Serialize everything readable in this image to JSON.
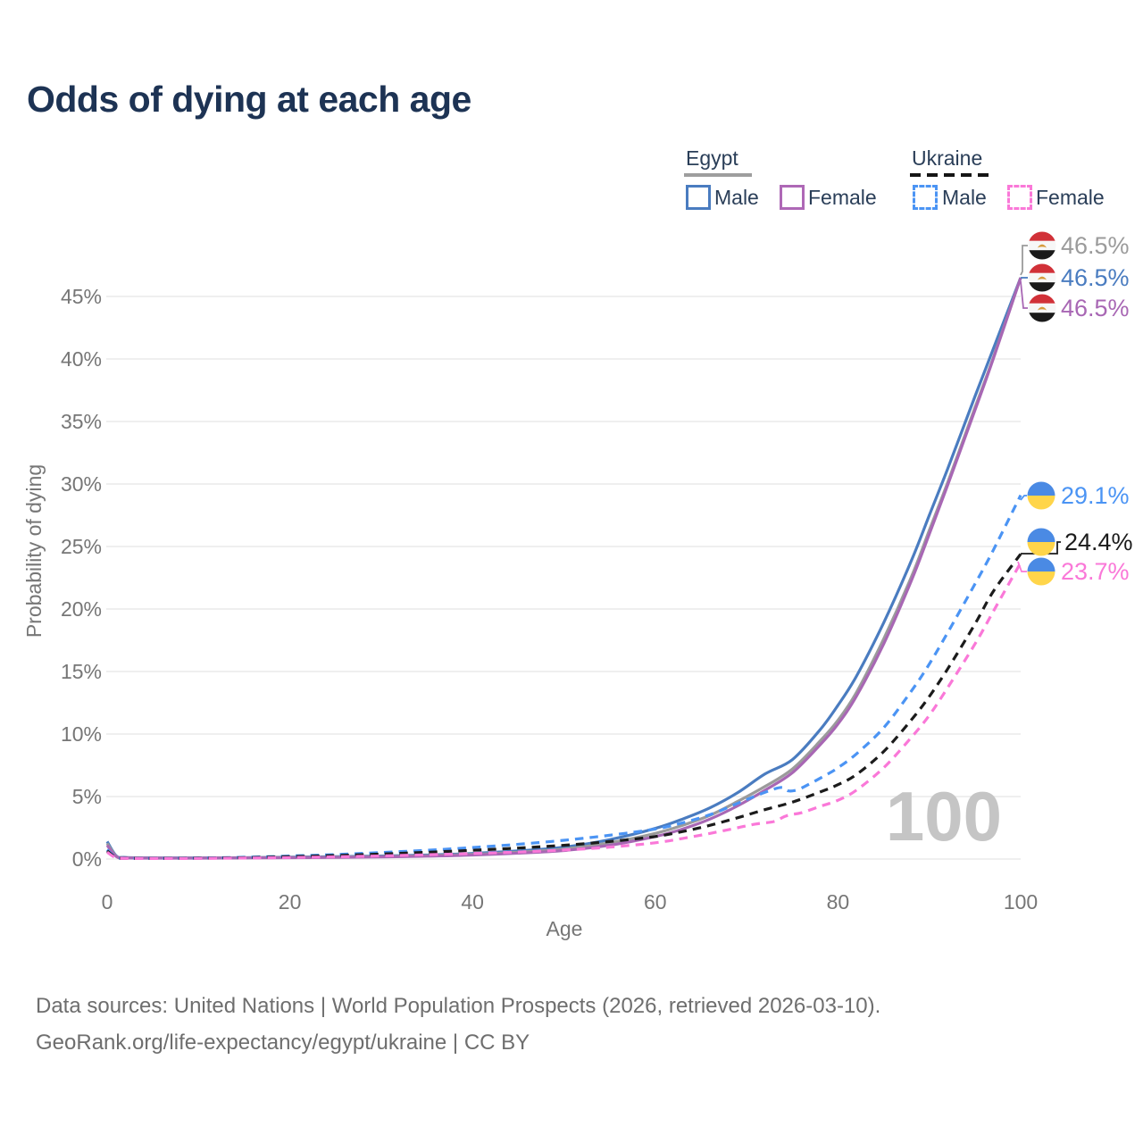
{
  "title": "Odds of dying at each age",
  "legend": {
    "egypt": {
      "label": "Egypt",
      "male": "Male",
      "female": "Female"
    },
    "ukraine": {
      "label": "Ukraine",
      "male": "Male",
      "female": "Female"
    }
  },
  "watermark": "100",
  "axis": {
    "x_label": "Age",
    "y_label": "Probability of dying"
  },
  "footer": {
    "line1": "Data sources: United Nations | World Population Prospects (2026, retrieved 2026-03-10).",
    "line2": "GeoRank.org/life-expectancy/egypt/ukraine | CC BY"
  },
  "chart_data": {
    "type": "line",
    "title": "Odds of dying at each age",
    "xlabel": "Age",
    "ylabel": "Probability of dying",
    "xlim": [
      0,
      100
    ],
    "ylim": [
      0,
      47
    ],
    "grid": true,
    "x_ticks": [
      "0",
      "20",
      "40",
      "60",
      "80",
      "100"
    ],
    "y_ticks": [
      "0%",
      "5%",
      "10%",
      "15%",
      "20%",
      "25%",
      "30%",
      "35%",
      "40%",
      "45%"
    ],
    "series": [
      {
        "name": "Egypt Male",
        "country": "Egypt",
        "sex": "Male",
        "style": "solid",
        "color": "#4a7cc0",
        "end_label": "46.5%",
        "end_value": 46.5,
        "points": [
          [
            0,
            1.4
          ],
          [
            1,
            0.25
          ],
          [
            2,
            0.13
          ],
          [
            5,
            0.09
          ],
          [
            10,
            0.09
          ],
          [
            15,
            0.11
          ],
          [
            20,
            0.15
          ],
          [
            25,
            0.19
          ],
          [
            30,
            0.24
          ],
          [
            35,
            0.32
          ],
          [
            40,
            0.45
          ],
          [
            45,
            0.65
          ],
          [
            50,
            0.95
          ],
          [
            55,
            1.55
          ],
          [
            60,
            2.45
          ],
          [
            63,
            3.2
          ],
          [
            66,
            4.1
          ],
          [
            69,
            5.3
          ],
          [
            72,
            6.8
          ],
          [
            75,
            7.95
          ],
          [
            78,
            10.3
          ],
          [
            80,
            12.3
          ],
          [
            82,
            14.6
          ],
          [
            85,
            18.9
          ],
          [
            88,
            23.8
          ],
          [
            90,
            27.5
          ],
          [
            92,
            31.2
          ],
          [
            95,
            37.0
          ],
          [
            97,
            40.8
          ],
          [
            100,
            46.5
          ]
        ]
      },
      {
        "name": "Egypt Total",
        "country": "Egypt",
        "sex": "Both",
        "style": "solid",
        "color": "#9b9b9b",
        "end_label": "46.5%",
        "end_value": 46.5,
        "points": [
          [
            0,
            1.25
          ],
          [
            1,
            0.22
          ],
          [
            2,
            0.11
          ],
          [
            5,
            0.08
          ],
          [
            10,
            0.08
          ],
          [
            15,
            0.1
          ],
          [
            20,
            0.13
          ],
          [
            25,
            0.16
          ],
          [
            30,
            0.2
          ],
          [
            35,
            0.27
          ],
          [
            40,
            0.38
          ],
          [
            45,
            0.55
          ],
          [
            50,
            0.8
          ],
          [
            55,
            1.3
          ],
          [
            60,
            2.05
          ],
          [
            63,
            2.7
          ],
          [
            66,
            3.5
          ],
          [
            69,
            4.6
          ],
          [
            72,
            5.8
          ],
          [
            75,
            7.2
          ],
          [
            78,
            9.4
          ],
          [
            80,
            11.1
          ],
          [
            82,
            13.3
          ],
          [
            85,
            17.6
          ],
          [
            88,
            22.5
          ],
          [
            90,
            26.3
          ],
          [
            92,
            30.1
          ],
          [
            95,
            36.1
          ],
          [
            97,
            40.1
          ],
          [
            100,
            46.5
          ]
        ]
      },
      {
        "name": "Egypt Female",
        "country": "Egypt",
        "sex": "Female",
        "style": "solid",
        "color": "#a867b4",
        "end_label": "46.5%",
        "end_value": 46.5,
        "points": [
          [
            0,
            1.1
          ],
          [
            1,
            0.2
          ],
          [
            2,
            0.1
          ],
          [
            5,
            0.07
          ],
          [
            10,
            0.07
          ],
          [
            15,
            0.09
          ],
          [
            20,
            0.11
          ],
          [
            25,
            0.13
          ],
          [
            30,
            0.17
          ],
          [
            35,
            0.23
          ],
          [
            40,
            0.32
          ],
          [
            45,
            0.47
          ],
          [
            50,
            0.68
          ],
          [
            55,
            1.1
          ],
          [
            60,
            1.8
          ],
          [
            63,
            2.4
          ],
          [
            66,
            3.2
          ],
          [
            69,
            4.25
          ],
          [
            72,
            5.5
          ],
          [
            75,
            6.9
          ],
          [
            78,
            9.1
          ],
          [
            80,
            10.8
          ],
          [
            82,
            13.0
          ],
          [
            85,
            17.2
          ],
          [
            88,
            22.2
          ],
          [
            90,
            26.0
          ],
          [
            92,
            29.9
          ],
          [
            95,
            35.9
          ],
          [
            97,
            40.0
          ],
          [
            100,
            46.5
          ]
        ]
      },
      {
        "name": "Ukraine Male",
        "country": "Ukraine",
        "sex": "Male",
        "style": "dashed",
        "color": "#4b94f4",
        "end_label": "29.1%",
        "end_value": 29.1,
        "points": [
          [
            0,
            0.75
          ],
          [
            1,
            0.12
          ],
          [
            2,
            0.07
          ],
          [
            5,
            0.06
          ],
          [
            10,
            0.08
          ],
          [
            15,
            0.14
          ],
          [
            20,
            0.24
          ],
          [
            25,
            0.36
          ],
          [
            30,
            0.52
          ],
          [
            35,
            0.7
          ],
          [
            40,
            0.92
          ],
          [
            45,
            1.18
          ],
          [
            50,
            1.5
          ],
          [
            55,
            1.9
          ],
          [
            60,
            2.4
          ],
          [
            63,
            2.9
          ],
          [
            66,
            3.55
          ],
          [
            69,
            4.45
          ],
          [
            71,
            5.05
          ],
          [
            73,
            5.6
          ],
          [
            74,
            5.72
          ],
          [
            74.6,
            5.45
          ],
          [
            75.6,
            5.55
          ],
          [
            77,
            6.05
          ],
          [
            79,
            6.85
          ],
          [
            80,
            7.3
          ],
          [
            82,
            8.4
          ],
          [
            85,
            10.5
          ],
          [
            88,
            13.4
          ],
          [
            90,
            15.6
          ],
          [
            92,
            18.1
          ],
          [
            95,
            22.0
          ],
          [
            97,
            24.7
          ],
          [
            100,
            29.1
          ]
        ]
      },
      {
        "name": "Ukraine Total",
        "country": "Ukraine",
        "sex": "Both",
        "style": "dashed",
        "color": "#1b1b1b",
        "end_label": "24.4%",
        "end_value": 24.4,
        "points": [
          [
            0,
            0.65
          ],
          [
            1,
            0.1
          ],
          [
            2,
            0.06
          ],
          [
            5,
            0.05
          ],
          [
            10,
            0.07
          ],
          [
            15,
            0.11
          ],
          [
            20,
            0.19
          ],
          [
            25,
            0.28
          ],
          [
            30,
            0.4
          ],
          [
            35,
            0.54
          ],
          [
            40,
            0.7
          ],
          [
            45,
            0.88
          ],
          [
            50,
            1.1
          ],
          [
            55,
            1.4
          ],
          [
            60,
            1.8
          ],
          [
            63,
            2.2
          ],
          [
            66,
            2.7
          ],
          [
            69,
            3.3
          ],
          [
            72,
            3.95
          ],
          [
            75,
            4.55
          ],
          [
            78,
            5.35
          ],
          [
            80,
            5.95
          ],
          [
            82,
            6.75
          ],
          [
            85,
            8.6
          ],
          [
            88,
            11.1
          ],
          [
            90,
            13.0
          ],
          [
            92,
            15.2
          ],
          [
            95,
            18.8
          ],
          [
            97,
            21.4
          ],
          [
            100,
            24.4
          ]
        ]
      },
      {
        "name": "Ukraine Female",
        "country": "Ukraine",
        "sex": "Female",
        "style": "dashed",
        "color": "#fa78d8",
        "end_label": "23.7%",
        "end_value": 23.7,
        "points": [
          [
            0,
            0.55
          ],
          [
            1,
            0.08
          ],
          [
            2,
            0.05
          ],
          [
            5,
            0.04
          ],
          [
            10,
            0.05
          ],
          [
            15,
            0.08
          ],
          [
            20,
            0.12
          ],
          [
            25,
            0.18
          ],
          [
            30,
            0.25
          ],
          [
            35,
            0.34
          ],
          [
            40,
            0.44
          ],
          [
            45,
            0.56
          ],
          [
            50,
            0.72
          ],
          [
            55,
            0.95
          ],
          [
            60,
            1.3
          ],
          [
            63,
            1.65
          ],
          [
            66,
            2.05
          ],
          [
            69,
            2.5
          ],
          [
            71,
            2.8
          ],
          [
            73,
            3.0
          ],
          [
            74,
            3.35
          ],
          [
            74.8,
            3.55
          ],
          [
            76,
            3.7
          ],
          [
            78,
            4.2
          ],
          [
            80,
            4.7
          ],
          [
            82,
            5.5
          ],
          [
            85,
            7.3
          ],
          [
            88,
            9.7
          ],
          [
            90,
            11.5
          ],
          [
            92,
            13.7
          ],
          [
            95,
            17.2
          ],
          [
            97,
            19.8
          ],
          [
            100,
            23.7
          ]
        ]
      }
    ],
    "legend_position": "top-right",
    "colors": {
      "egypt_male": "#4a7cc0",
      "egypt_total": "#9b9b9b",
      "egypt_female": "#a867b4",
      "ukraine_male": "#4b94f4",
      "ukraine_total": "#1b1b1b",
      "ukraine_female": "#fa78d8",
      "flag_egypt_red": "#d13138",
      "flag_egypt_black": "#1a1a1a",
      "flag_egypt_gold": "#d69b3c",
      "flag_ukraine_blue": "#4a8ae4",
      "flag_ukraine_yellow": "#ffd54a"
    }
  }
}
